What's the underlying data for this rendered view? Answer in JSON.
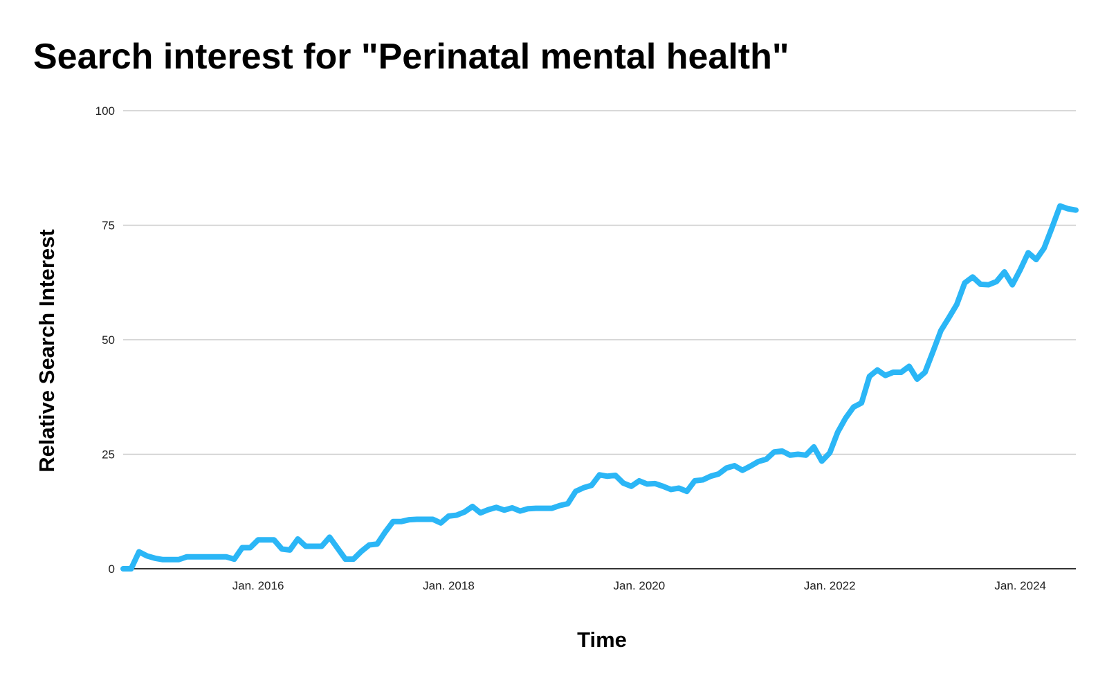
{
  "chart_data": {
    "type": "line",
    "title": "Search interest for \"Perinatal mental health\"",
    "xlabel": "Time",
    "ylabel": "Relative Search Interest",
    "ylim": [
      0,
      100
    ],
    "y_ticks": [
      0,
      25,
      50,
      75,
      100
    ],
    "x_range": [
      "2014-08",
      "2024-08"
    ],
    "x_ticks": [
      {
        "label": "Jan. 2016",
        "date": "2016-01"
      },
      {
        "label": "Jan. 2018",
        "date": "2018-01"
      },
      {
        "label": "Jan. 2020",
        "date": "2020-01"
      },
      {
        "label": "Jan. 2022",
        "date": "2022-01"
      },
      {
        "label": "Jan. 2024",
        "date": "2024-01"
      }
    ],
    "grid": true,
    "legend": "none",
    "series": [
      {
        "color": "#2bb6f6",
        "points": [
          [
            "2014-08",
            0
          ],
          [
            "2014-09",
            0
          ],
          [
            "2014-10",
            3.7
          ],
          [
            "2014-11",
            2.8
          ],
          [
            "2014-12",
            2.3
          ],
          [
            "2015-01",
            2.0
          ],
          [
            "2015-02",
            2.0
          ],
          [
            "2015-03",
            2.0
          ],
          [
            "2015-04",
            2.6
          ],
          [
            "2015-05",
            2.6
          ],
          [
            "2015-06",
            2.6
          ],
          [
            "2015-07",
            2.6
          ],
          [
            "2015-08",
            2.6
          ],
          [
            "2015-09",
            2.6
          ],
          [
            "2015-10",
            2.1
          ],
          [
            "2015-11",
            4.6
          ],
          [
            "2015-12",
            4.6
          ],
          [
            "2016-01",
            6.3
          ],
          [
            "2016-02",
            6.3
          ],
          [
            "2016-03",
            6.3
          ],
          [
            "2016-04",
            4.3
          ],
          [
            "2016-05",
            4.1
          ],
          [
            "2016-06",
            6.5
          ],
          [
            "2016-07",
            4.9
          ],
          [
            "2016-08",
            4.9
          ],
          [
            "2016-09",
            4.9
          ],
          [
            "2016-10",
            6.9
          ],
          [
            "2016-11",
            4.5
          ],
          [
            "2016-12",
            2.1
          ],
          [
            "2017-01",
            2.1
          ],
          [
            "2017-02",
            3.8
          ],
          [
            "2017-03",
            5.2
          ],
          [
            "2017-04",
            5.4
          ],
          [
            "2017-05",
            8.0
          ],
          [
            "2017-06",
            10.3
          ],
          [
            "2017-07",
            10.3
          ],
          [
            "2017-08",
            10.7
          ],
          [
            "2017-09",
            10.8
          ],
          [
            "2017-10",
            10.8
          ],
          [
            "2017-11",
            10.8
          ],
          [
            "2017-12",
            10.0
          ],
          [
            "2018-01",
            11.5
          ],
          [
            "2018-02",
            11.7
          ],
          [
            "2018-03",
            12.4
          ],
          [
            "2018-04",
            13.6
          ],
          [
            "2018-05",
            12.2
          ],
          [
            "2018-06",
            12.9
          ],
          [
            "2018-07",
            13.4
          ],
          [
            "2018-08",
            12.8
          ],
          [
            "2018-09",
            13.3
          ],
          [
            "2018-10",
            12.6
          ],
          [
            "2018-11",
            13.1
          ],
          [
            "2018-12",
            13.2
          ],
          [
            "2019-01",
            13.2
          ],
          [
            "2019-02",
            13.2
          ],
          [
            "2019-03",
            13.8
          ],
          [
            "2019-04",
            14.2
          ],
          [
            "2019-05",
            16.9
          ],
          [
            "2019-06",
            17.7
          ],
          [
            "2019-07",
            18.2
          ],
          [
            "2019-08",
            20.5
          ],
          [
            "2019-09",
            20.2
          ],
          [
            "2019-10",
            20.4
          ],
          [
            "2019-11",
            18.7
          ],
          [
            "2019-12",
            18.0
          ],
          [
            "2020-01",
            19.2
          ],
          [
            "2020-02",
            18.5
          ],
          [
            "2020-03",
            18.6
          ],
          [
            "2020-04",
            18.0
          ],
          [
            "2020-05",
            17.3
          ],
          [
            "2020-06",
            17.6
          ],
          [
            "2020-07",
            16.9
          ],
          [
            "2020-08",
            19.2
          ],
          [
            "2020-09",
            19.4
          ],
          [
            "2020-10",
            20.2
          ],
          [
            "2020-11",
            20.7
          ],
          [
            "2020-12",
            22.0
          ],
          [
            "2021-01",
            22.5
          ],
          [
            "2021-02",
            21.5
          ],
          [
            "2021-03",
            22.4
          ],
          [
            "2021-04",
            23.4
          ],
          [
            "2021-05",
            23.9
          ],
          [
            "2021-06",
            25.5
          ],
          [
            "2021-07",
            25.7
          ],
          [
            "2021-08",
            24.8
          ],
          [
            "2021-09",
            25.0
          ],
          [
            "2021-10",
            24.8
          ],
          [
            "2021-11",
            26.6
          ],
          [
            "2021-12",
            23.5
          ],
          [
            "2022-01",
            25.3
          ],
          [
            "2022-02",
            29.8
          ],
          [
            "2022-03",
            32.9
          ],
          [
            "2022-04",
            35.3
          ],
          [
            "2022-05",
            36.2
          ],
          [
            "2022-06",
            42.0
          ],
          [
            "2022-07",
            43.4
          ],
          [
            "2022-08",
            42.2
          ],
          [
            "2022-09",
            42.9
          ],
          [
            "2022-10",
            42.9
          ],
          [
            "2022-11",
            44.2
          ],
          [
            "2022-12",
            41.4
          ],
          [
            "2023-01",
            42.9
          ],
          [
            "2023-02",
            47.4
          ],
          [
            "2023-03",
            52.0
          ],
          [
            "2023-04",
            54.8
          ],
          [
            "2023-05",
            57.7
          ],
          [
            "2023-06",
            62.4
          ],
          [
            "2023-07",
            63.7
          ],
          [
            "2023-08",
            62.1
          ],
          [
            "2023-09",
            62.0
          ],
          [
            "2023-10",
            62.7
          ],
          [
            "2023-11",
            64.8
          ],
          [
            "2023-12",
            62.0
          ],
          [
            "2024-01",
            65.3
          ],
          [
            "2024-02",
            69.0
          ],
          [
            "2024-03",
            67.5
          ],
          [
            "2024-04",
            70.0
          ],
          [
            "2024-05",
            74.5
          ],
          [
            "2024-06",
            79.2
          ],
          [
            "2024-07",
            78.6
          ],
          [
            "2024-08",
            78.3
          ]
        ]
      }
    ]
  }
}
